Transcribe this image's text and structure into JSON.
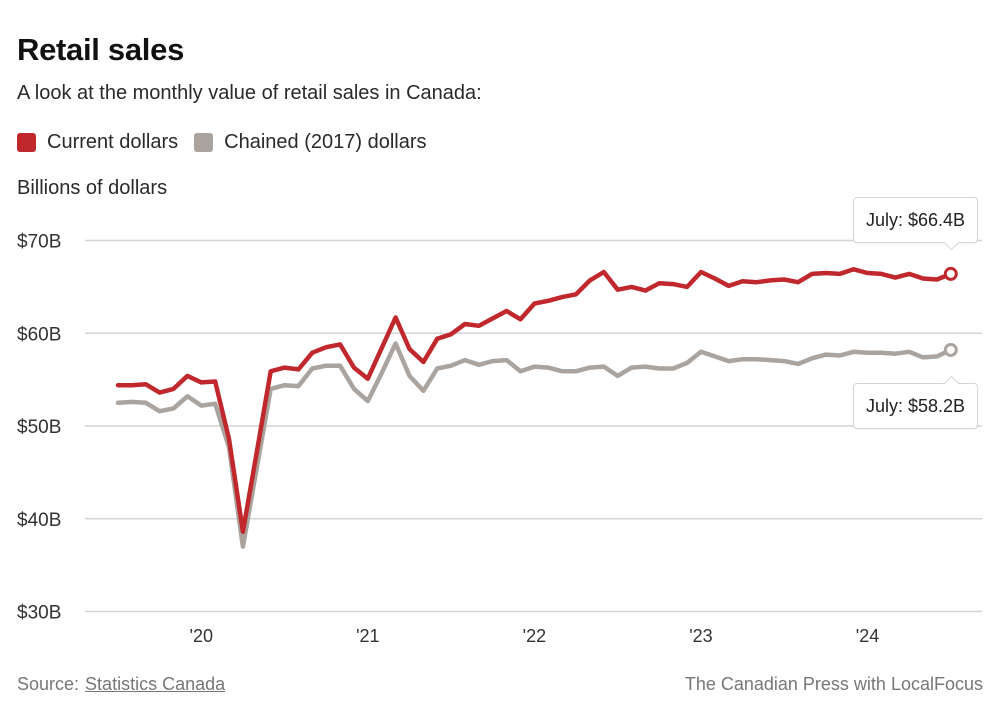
{
  "header": {
    "title": "Retail sales",
    "subtitle": "A look at the monthly value of retail sales in Canada:",
    "unit_label": "Billions of dollars"
  },
  "legend": [
    {
      "label": "Current dollars",
      "color": "#c0282d"
    },
    {
      "label": "Chained (2017) dollars",
      "color": "#aba39d"
    }
  ],
  "tooltips": {
    "current": "July: $66.4B",
    "chained": "July: $58.2B"
  },
  "footer": {
    "source_prefix": "Source:",
    "source_link": "Statistics Canada",
    "credit": "The Canadian Press with LocalFocus"
  },
  "chart_data": {
    "type": "line",
    "title": "Retail sales",
    "subtitle": "A look at the monthly value of retail sales in Canada:",
    "xlabel": "",
    "ylabel": "Billions of dollars",
    "x_start": "2019-07",
    "x_end": "2024-07",
    "x_frequency": "monthly",
    "xticks": [
      {
        "label": "'20",
        "month_index": 6
      },
      {
        "label": "'21",
        "month_index": 18
      },
      {
        "label": "'22",
        "month_index": 30
      },
      {
        "label": "'23",
        "month_index": 42
      },
      {
        "label": "'24",
        "month_index": 54
      }
    ],
    "yticks": [
      {
        "label": "$30B",
        "value": 30
      },
      {
        "label": "$40B",
        "value": 40
      },
      {
        "label": "$50B",
        "value": 50
      },
      {
        "label": "$60B",
        "value": 60
      },
      {
        "label": "$70B",
        "value": 70
      }
    ],
    "ylim": [
      30,
      70
    ],
    "grid": true,
    "legend_position": "top-left",
    "series": [
      {
        "name": "Current dollars",
        "color": "#c0282d",
        "values": [
          54.4,
          54.4,
          54.5,
          53.6,
          54.0,
          55.4,
          54.7,
          54.8,
          48.6,
          38.6,
          47.2,
          55.9,
          56.3,
          56.1,
          57.9,
          58.5,
          58.8,
          56.3,
          55.1,
          58.4,
          61.7,
          58.3,
          56.9,
          59.4,
          59.9,
          61.0,
          60.8,
          61.6,
          62.4,
          61.5,
          63.2,
          63.5,
          63.9,
          64.2,
          65.7,
          66.6,
          64.7,
          65.0,
          64.6,
          65.4,
          65.3,
          65.0,
          66.6,
          65.9,
          65.1,
          65.6,
          65.5,
          65.7,
          65.8,
          65.5,
          66.4,
          66.5,
          66.4,
          66.9,
          66.5,
          66.4,
          66.0,
          66.4,
          65.9,
          65.8,
          66.4
        ],
        "end_label": "July: $66.4B"
      },
      {
        "name": "Chained (2017) dollars",
        "color": "#aba39d",
        "values": [
          52.5,
          52.6,
          52.5,
          51.6,
          51.9,
          53.2,
          52.2,
          52.4,
          47.7,
          37.0,
          45.5,
          54.0,
          54.4,
          54.3,
          56.2,
          56.5,
          56.5,
          54.0,
          52.7,
          55.7,
          58.9,
          55.4,
          53.8,
          56.2,
          56.5,
          57.1,
          56.6,
          57.0,
          57.1,
          55.9,
          56.4,
          56.3,
          55.9,
          55.9,
          56.3,
          56.4,
          55.4,
          56.3,
          56.4,
          56.2,
          56.2,
          56.8,
          58.0,
          57.5,
          57.0,
          57.2,
          57.2,
          57.1,
          57.0,
          56.7,
          57.3,
          57.7,
          57.6,
          58.0,
          57.9,
          57.9,
          57.8,
          58.0,
          57.4,
          57.5,
          58.2
        ],
        "end_label": "July: $58.2B"
      }
    ]
  }
}
